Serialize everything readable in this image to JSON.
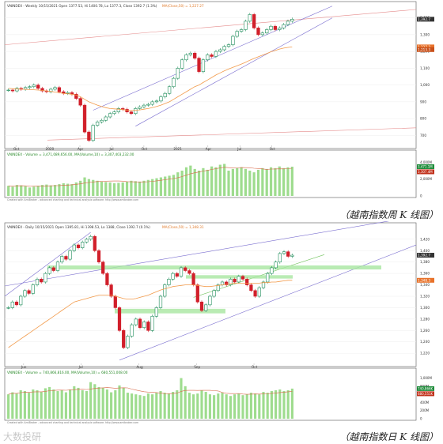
{
  "captions": {
    "weekly": "（越南指数周 K 线图）",
    "daily": "（越南指数日 K 线图）"
  },
  "watermark": "大数投研",
  "colors": {
    "up_candle": "#1e8c5a",
    "down_candle": "#d11f2a",
    "ma50_line": "#f29a4a",
    "ma10_line": "#e07a5a",
    "channel_line": "#7b6fd0",
    "red_trendline": "#e58a8a",
    "support_zone": "#a8e6a0",
    "volume_bar": "#9edc8e",
    "volume_ma": "#d86a4a"
  },
  "chart_data": [
    {
      "id": "weekly",
      "type": "candlestick",
      "title": "VNINDEX - Weekly 10/15/2021 Open 1377.53, Hi 1400.78, Lo 1377.3, Close 1392.7 (1.3%)",
      "ma_label": "MA(Close,50) = 1,227.27",
      "credit": "Created with AmiBroker - advanced charting and technical analysis software. http://www.amibroker.com",
      "ylim": [
        650,
        1450
      ],
      "y_ticks": [
        "1,400",
        "1,300",
        "1,200",
        "1,100",
        "1,000",
        "900",
        "800",
        "700"
      ],
      "x_ticks": [
        "Oct",
        "2020",
        "Apr",
        "Jul",
        "Oct",
        "2021",
        "Apr",
        "Jul",
        "Oct"
      ],
      "last_price_label": "1,392.7",
      "ma_price_label": "1,227.3",
      "ma_price_label2": "1,213.3",
      "closes": [
        970,
        965,
        980,
        975,
        985,
        990,
        1000,
        980,
        965,
        960,
        975,
        985,
        960,
        950,
        955,
        945,
        920,
        880,
        720,
        670,
        760,
        780,
        790,
        810,
        830,
        840,
        860,
        855,
        840,
        830,
        860,
        870,
        880,
        885,
        900,
        905,
        930,
        950,
        990,
        1040,
        1100,
        1150,
        1180,
        1190,
        1160,
        1080,
        1150,
        1180,
        1170,
        1200,
        1210,
        1230,
        1240,
        1290,
        1320,
        1330,
        1380,
        1420,
        1340,
        1300,
        1310,
        1330,
        1350,
        1330,
        1340,
        1360,
        1380,
        1392
      ],
      "ma": [
        980,
        978,
        976,
        975,
        974,
        973,
        972,
        970,
        968,
        965,
        962,
        958,
        955,
        950,
        948,
        945,
        940,
        930,
        915,
        900,
        890,
        880,
        872,
        865,
        860,
        858,
        856,
        854,
        850,
        848,
        850,
        852,
        856,
        860,
        866,
        872,
        880,
        890,
        900,
        915,
        930,
        945,
        960,
        975,
        990,
        1000,
        1015,
        1030,
        1045,
        1060,
        1072,
        1085,
        1095,
        1105,
        1115,
        1125,
        1135,
        1148,
        1158,
        1168,
        1178,
        1188,
        1198,
        1206,
        1214,
        1220,
        1224,
        1227
      ],
      "volume": {
        "label": "VNINDEX - Volume = 3,471,089,656.00, MA(Volume,10) = 3,307,403,232.00",
        "ylim": [
          0,
          4500
        ],
        "y_ticks": [
          "4,000M",
          "2,000M",
          "0"
        ],
        "last_label": "3,471.1M",
        "ma_label": "3,307.4M",
        "values": [
          1200,
          1100,
          1300,
          1250,
          1150,
          1000,
          1100,
          1200,
          1300,
          1350,
          1250,
          1300,
          1400,
          1500,
          1450,
          1400,
          1600,
          1800,
          2200,
          2000,
          1900,
          1800,
          1700,
          1650,
          1600,
          1500,
          1550,
          1600,
          1700,
          1800,
          1750,
          1700,
          1800,
          1900,
          2000,
          2100,
          2200,
          2300,
          2400,
          2500,
          2800,
          3000,
          3400,
          3600,
          3200,
          3000,
          3300,
          3100,
          3500,
          3400,
          3700,
          3800,
          3000,
          3200,
          3300,
          3400,
          3200,
          3000,
          2800,
          3100,
          3300,
          3200,
          3400,
          3300,
          3500,
          3300,
          3400,
          3471
        ]
      }
    },
    {
      "id": "daily",
      "type": "candlestick",
      "title": "VNINDEX - Daily 10/15/2021 Open 1395.81, Hi 1398.53, Lo 1388, Close 1392.7 (0.1%)",
      "ma_label": "MA(Close,50) = 1,348.31",
      "credit": "Created with AmiBroker - advanced charting and technical analysis software. http://www.amibroker.com",
      "ylim": [
        1205,
        1435
      ],
      "y_ticks": [
        "1,420",
        "1,400",
        "1,380",
        "1,360",
        "1,340",
        "1,320",
        "1,300",
        "1,280",
        "1,260",
        "1,240",
        "1,220"
      ],
      "x_ticks": [
        "Jun",
        "Jul",
        "Aug",
        "Sep",
        "Oct"
      ],
      "last_price_label": "1,392.7",
      "ma_price_label": "1,348.3",
      "closes": [
        1300,
        1310,
        1305,
        1320,
        1330,
        1325,
        1340,
        1350,
        1345,
        1360,
        1370,
        1365,
        1380,
        1390,
        1385,
        1400,
        1410,
        1405,
        1415,
        1420,
        1425,
        1400,
        1380,
        1360,
        1340,
        1320,
        1300,
        1260,
        1230,
        1250,
        1270,
        1280,
        1265,
        1275,
        1260,
        1285,
        1300,
        1320,
        1340,
        1350,
        1360,
        1355,
        1370,
        1365,
        1360,
        1340,
        1310,
        1295,
        1305,
        1320,
        1330,
        1340,
        1345,
        1340,
        1350,
        1345,
        1355,
        1350,
        1340,
        1330,
        1320,
        1335,
        1345,
        1360,
        1370,
        1380,
        1395,
        1398,
        1390,
        1392
      ],
      "ma": [
        1230,
        1235,
        1240,
        1245,
        1250,
        1255,
        1260,
        1265,
        1270,
        1275,
        1280,
        1285,
        1290,
        1295,
        1300,
        1305,
        1310,
        1312,
        1314,
        1316,
        1318,
        1320,
        1322,
        1322,
        1322,
        1322,
        1320,
        1318,
        1316,
        1315,
        1315,
        1316,
        1318,
        1320,
        1322,
        1325,
        1328,
        1331,
        1333,
        1335,
        1337,
        1338,
        1339,
        1340,
        1340,
        1340,
        1339,
        1338,
        1337,
        1337,
        1338,
        1339,
        1340,
        1341,
        1342,
        1343,
        1343,
        1343,
        1343,
        1343,
        1343,
        1343,
        1344,
        1344,
        1345,
        1345,
        1346,
        1347,
        1348,
        1348
      ],
      "volume": {
        "label": "VNINDEX - Volume = 740,866,816.00, MA(Volume,10) = 680,551,008.00",
        "ylim": [
          0,
          1050
        ],
        "y_ticks": [
          "1,000M",
          "800M",
          "600M",
          "400M",
          "200M",
          "0"
        ],
        "last_label": "740,866K",
        "ma_label": "680,551K",
        "values": [
          600,
          650,
          620,
          700,
          680,
          640,
          720,
          700,
          660,
          750,
          780,
          720,
          680,
          700,
          650,
          720,
          800,
          760,
          700,
          680,
          900,
          850,
          780,
          760,
          720,
          650,
          700,
          820,
          760,
          640,
          620,
          600,
          580,
          560,
          620,
          600,
          640,
          680,
          640,
          620,
          660,
          700,
          1000,
          800,
          640,
          600,
          620,
          700,
          660,
          600,
          580,
          620,
          640,
          600,
          560,
          600,
          620,
          580,
          600,
          640,
          620,
          600,
          660,
          640,
          680,
          700,
          720,
          680,
          700,
          741
        ]
      }
    }
  ]
}
